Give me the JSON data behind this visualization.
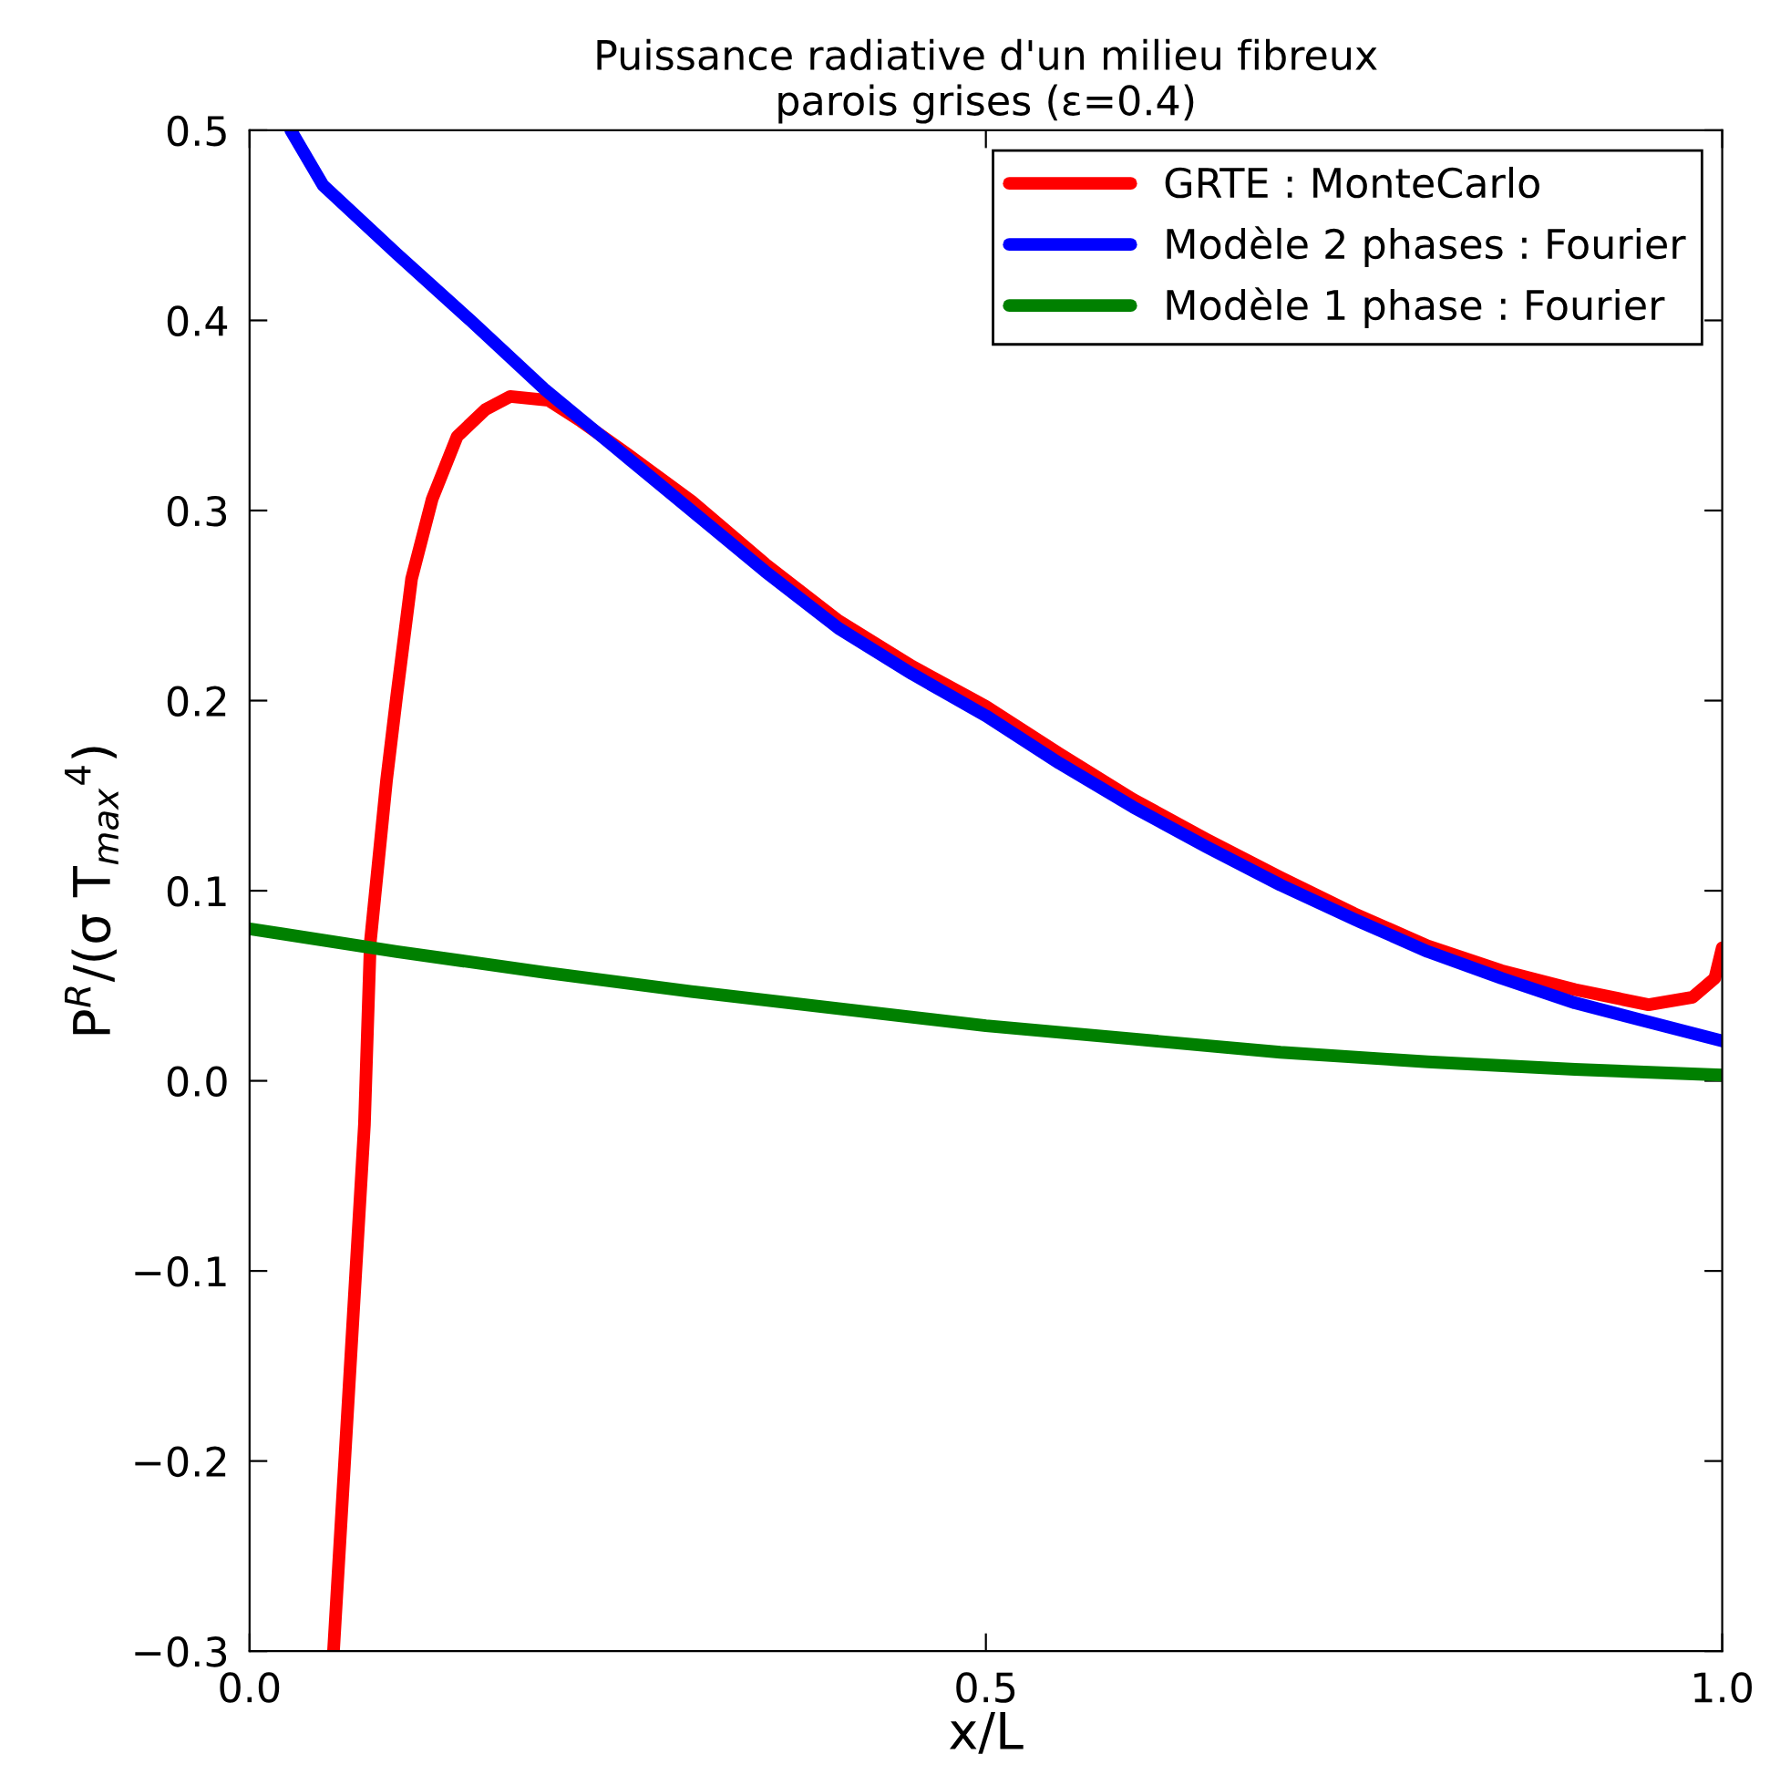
{
  "chart_data": {
    "type": "line",
    "title": "Puissance radiative d'un milieu fibreux\nparois grises (ε=0.4)",
    "xlabel": "x/L",
    "ylabel": "P$^{R}$/(σ T$_{max}$$^{4}$)",
    "xlim": [
      0.0,
      1.0
    ],
    "ylim": [
      -0.3,
      0.5
    ],
    "xticks": [
      {
        "value": 0.0,
        "label": "0.0"
      },
      {
        "value": 0.5,
        "label": "0.5"
      },
      {
        "value": 1.0,
        "label": "1.0"
      }
    ],
    "yticks": [
      {
        "value": -0.3,
        "label": "−0.3"
      },
      {
        "value": -0.2,
        "label": "−0.2"
      },
      {
        "value": -0.1,
        "label": "−0.1"
      },
      {
        "value": 0.0,
        "label": "0.0"
      },
      {
        "value": 0.1,
        "label": "0.1"
      },
      {
        "value": 0.2,
        "label": "0.2"
      },
      {
        "value": 0.3,
        "label": "0.3"
      },
      {
        "value": 0.4,
        "label": "0.4"
      },
      {
        "value": 0.5,
        "label": "0.5"
      }
    ],
    "grid": false,
    "legend": "top right",
    "line_style": "solid",
    "marker": "none",
    "series": [
      {
        "name": "GRTE : MonteCarlo",
        "color": "#ff0000",
        "x": [
          0.057,
          0.078,
          0.082,
          0.093,
          0.1,
          0.11,
          0.124,
          0.141,
          0.16,
          0.177,
          0.203,
          0.225,
          0.256,
          0.3,
          0.35,
          0.4,
          0.45,
          0.5,
          0.55,
          0.6,
          0.65,
          0.7,
          0.75,
          0.8,
          0.85,
          0.9,
          0.95,
          0.98,
          0.995,
          1.0
        ],
        "values": [
          -0.3,
          -0.023,
          0.073,
          0.158,
          0.203,
          0.264,
          0.306,
          0.339,
          0.353,
          0.36,
          0.358,
          0.347,
          0.33,
          0.305,
          0.272,
          0.242,
          0.218,
          0.197,
          0.172,
          0.148,
          0.127,
          0.107,
          0.088,
          0.071,
          0.058,
          0.048,
          0.04,
          0.044,
          0.054,
          0.07
        ]
      },
      {
        "name": "Modèle 2 phases : Fourier",
        "color": "#0000ff",
        "x": [
          0.028,
          0.05,
          0.1,
          0.15,
          0.2,
          0.25,
          0.3,
          0.35,
          0.4,
          0.45,
          0.5,
          0.55,
          0.6,
          0.65,
          0.7,
          0.75,
          0.8,
          0.85,
          0.9,
          0.95,
          1.0
        ],
        "values": [
          0.5,
          0.471,
          0.435,
          0.4,
          0.364,
          0.332,
          0.3,
          0.268,
          0.238,
          0.214,
          0.192,
          0.167,
          0.144,
          0.123,
          0.103,
          0.085,
          0.068,
          0.054,
          0.041,
          0.031,
          0.021
        ]
      },
      {
        "name": "Modèle 1 phase : Fourier",
        "color": "#008000",
        "x": [
          0.0,
          0.1,
          0.2,
          0.3,
          0.4,
          0.5,
          0.6,
          0.7,
          0.8,
          0.9,
          1.0
        ],
        "values": [
          0.08,
          0.068,
          0.057,
          0.047,
          0.038,
          0.029,
          0.022,
          0.015,
          0.01,
          0.006,
          0.003
        ]
      }
    ]
  }
}
